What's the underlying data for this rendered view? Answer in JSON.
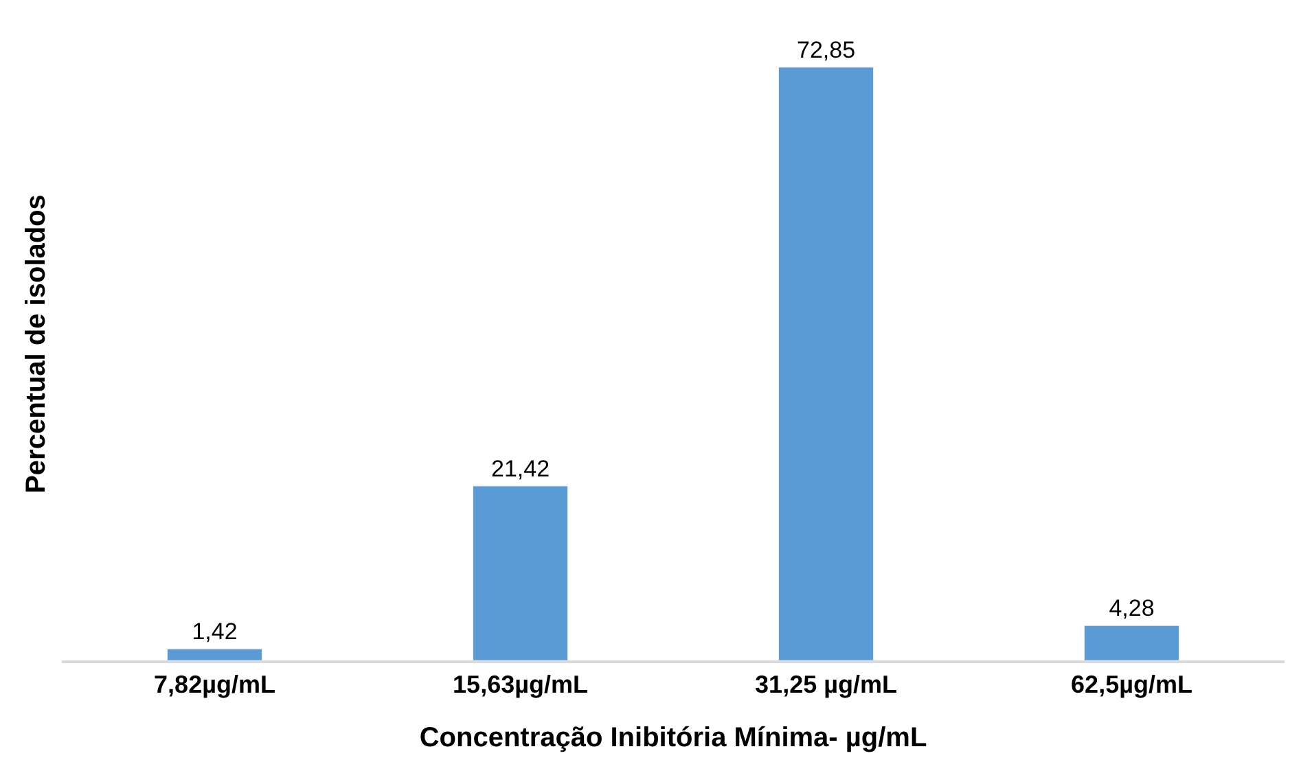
{
  "chart_data": {
    "type": "bar",
    "xlabel": "Concentração Inibitória Mínima- µg/mL",
    "ylabel": "Percentual de isolados",
    "categories": [
      "7,82µg/mL",
      "15,63µg/mL",
      "31,25 µg/mL",
      "62,5µg/mL"
    ],
    "values": [
      1.42,
      21.42,
      72.85,
      4.28
    ],
    "value_labels": [
      "1,42",
      "21,42",
      "72,85",
      "4,28"
    ],
    "color": "#5b9bd5",
    "tick_labels": "x"
  }
}
